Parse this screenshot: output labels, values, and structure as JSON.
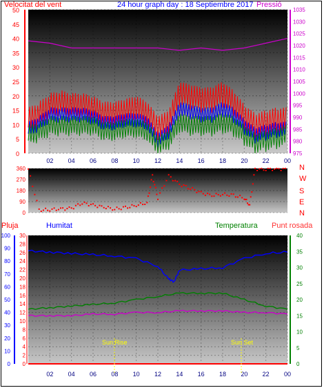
{
  "header": {
    "left_label": "Velocitat del vent",
    "center_label": "24 hour graph day : 18 Septiembre 2017",
    "right_label": "Pressió"
  },
  "colors": {
    "wind_speed": "#ff0000",
    "wind_avg": "#0000ff",
    "wind_dir_scale": "#ff0000",
    "gust_secondary": "#008000",
    "pressure": "#cc00cc",
    "rain": "#ff0000",
    "humidity": "#0000ff",
    "temperature": "#008000",
    "dew_point": "#cc00cc",
    "sun_marker": "#ffff00"
  },
  "chart_data": [
    {
      "type": "line",
      "title": "",
      "x_ticks": [
        "02",
        "04",
        "06",
        "08",
        "10",
        "12",
        "14",
        "16",
        "18",
        "20",
        "22",
        "00"
      ],
      "left_axis": {
        "label": "Velocitat del vent",
        "range": [
          0,
          50
        ],
        "ticks": [
          0,
          5,
          10,
          15,
          20,
          25,
          30,
          35,
          40,
          45,
          50
        ]
      },
      "right_axis": {
        "label": "Pressió",
        "range": [
          975,
          1035
        ],
        "ticks": [
          975,
          980,
          985,
          990,
          995,
          1000,
          1005,
          1010,
          1015,
          1020,
          1025,
          1030,
          1035
        ]
      },
      "series": [
        {
          "name": "Pressió",
          "color": "#cc00cc",
          "x": [
            0,
            2,
            4,
            6,
            8,
            10,
            12,
            14,
            16,
            18,
            20,
            22,
            24
          ],
          "values": [
            1022,
            1021,
            1019,
            1019,
            1019,
            1019,
            1019,
            1018,
            1019,
            1018,
            1019,
            1021,
            1023
          ]
        }
      ],
      "unnamed_series": [
        {
          "color": "#ff0000",
          "x": [
            0,
            1,
            2,
            3,
            4,
            5,
            6,
            7,
            8,
            9,
            10,
            11,
            12,
            13,
            14,
            15,
            16,
            17,
            18,
            19,
            20,
            21,
            22,
            23,
            24
          ],
          "values": [
            11,
            13,
            16,
            17,
            16,
            16,
            15,
            13,
            13,
            14,
            15,
            13,
            8,
            10,
            20,
            19,
            18,
            18,
            20,
            17,
            12,
            9,
            10,
            11,
            11
          ]
        },
        {
          "color": "#0000ff",
          "x": [
            0,
            1,
            2,
            3,
            4,
            5,
            6,
            7,
            8,
            9,
            10,
            11,
            12,
            13,
            14,
            15,
            16,
            17,
            18,
            19,
            20,
            21,
            22,
            23,
            24
          ],
          "values": [
            8,
            10,
            13,
            13,
            13,
            13,
            12,
            10,
            10,
            11,
            11,
            10,
            4,
            7,
            15,
            14,
            13,
            13,
            15,
            13,
            9,
            6,
            7,
            8,
            8
          ]
        },
        {
          "color": "#008000",
          "x": [
            0,
            1,
            2,
            3,
            4,
            5,
            6,
            7,
            8,
            9,
            10,
            11,
            12,
            13,
            14,
            15,
            16,
            17,
            18,
            19,
            20,
            21,
            22,
            23,
            24
          ],
          "values": [
            6,
            7,
            9,
            9,
            9,
            9,
            9,
            7,
            7,
            8,
            8,
            7,
            2,
            4,
            10,
            9,
            9,
            9,
            10,
            9,
            6,
            3,
            4,
            5,
            6
          ]
        }
      ]
    },
    {
      "type": "scatter",
      "title": "",
      "left_axis": {
        "range": [
          0,
          360
        ],
        "ticks": [
          0,
          90,
          180,
          270,
          360
        ]
      },
      "right_labels": [
        "N",
        "W",
        "S",
        "E",
        "N"
      ],
      "series": [
        {
          "color": "#ff0000",
          "x": [
            0,
            1,
            2,
            3,
            4,
            5,
            6,
            7,
            8,
            9,
            10,
            11,
            11.5,
            12,
            13,
            14,
            15,
            16,
            17,
            18,
            19,
            20,
            20.5,
            21,
            22,
            23,
            24
          ],
          "values": [
            355,
            20,
            25,
            30,
            35,
            80,
            60,
            45,
            30,
            40,
            60,
            80,
            300,
            120,
            300,
            230,
            200,
            160,
            140,
            150,
            140,
            120,
            60,
            355,
            355,
            355,
            355
          ]
        }
      ]
    },
    {
      "type": "line",
      "title": "",
      "x_ticks": [
        "02",
        "04",
        "06",
        "08",
        "10",
        "12",
        "14",
        "16",
        "18",
        "20",
        "22",
        "00"
      ],
      "axis_labels": {
        "rain": "Pluja",
        "humidity": "Humitat",
        "temperature": "Temperatura",
        "dew_point": "Punt rosada"
      },
      "left_axis_rain": {
        "range": [
          0,
          100
        ],
        "ticks": [
          0,
          10,
          20,
          30,
          40,
          50,
          60,
          70,
          80,
          90,
          100
        ]
      },
      "left_axis_humidity": {
        "range": [
          0,
          30
        ],
        "ticks": [
          0,
          2,
          4,
          6,
          8,
          10,
          12,
          14,
          16,
          18,
          20,
          22,
          24,
          26,
          28,
          30
        ]
      },
      "right_axis": {
        "range": [
          0,
          40
        ],
        "ticks": [
          0,
          5,
          10,
          15,
          20,
          25,
          30,
          35,
          40
        ]
      },
      "annotations": [
        "Sun Rise",
        "Sun Set"
      ],
      "series": [
        {
          "name": "Humitat",
          "color": "#0000ff",
          "x": [
            0,
            2,
            4,
            6,
            8,
            10,
            12,
            13,
            13.5,
            14,
            16,
            18,
            20,
            22,
            24
          ],
          "values": [
            88,
            87,
            86,
            85,
            84,
            82,
            76,
            66,
            64,
            73,
            74,
            75,
            82,
            86,
            87
          ]
        },
        {
          "name": "Temperatura",
          "color": "#008000",
          "x": [
            0,
            2,
            4,
            6,
            8,
            10,
            12,
            14,
            16,
            18,
            20,
            22,
            24
          ],
          "values": [
            17,
            17.5,
            18,
            18.5,
            19,
            20,
            21,
            22,
            22,
            22,
            20,
            18,
            17
          ]
        },
        {
          "name": "Punt rosada",
          "color": "#cc00cc",
          "x": [
            0,
            2,
            4,
            6,
            8,
            10,
            12,
            14,
            16,
            18,
            20,
            22,
            24
          ],
          "values": [
            15,
            15,
            15,
            15.5,
            15.5,
            16,
            16,
            16.5,
            16.5,
            16.5,
            16,
            16,
            15.5
          ]
        },
        {
          "name": "Pluja",
          "color": "#ff0000",
          "x": [
            0,
            24
          ],
          "values": [
            0,
            0
          ]
        }
      ]
    }
  ],
  "sun": {
    "rise_label": "Sun Rise",
    "set_label": "Sun Set"
  }
}
